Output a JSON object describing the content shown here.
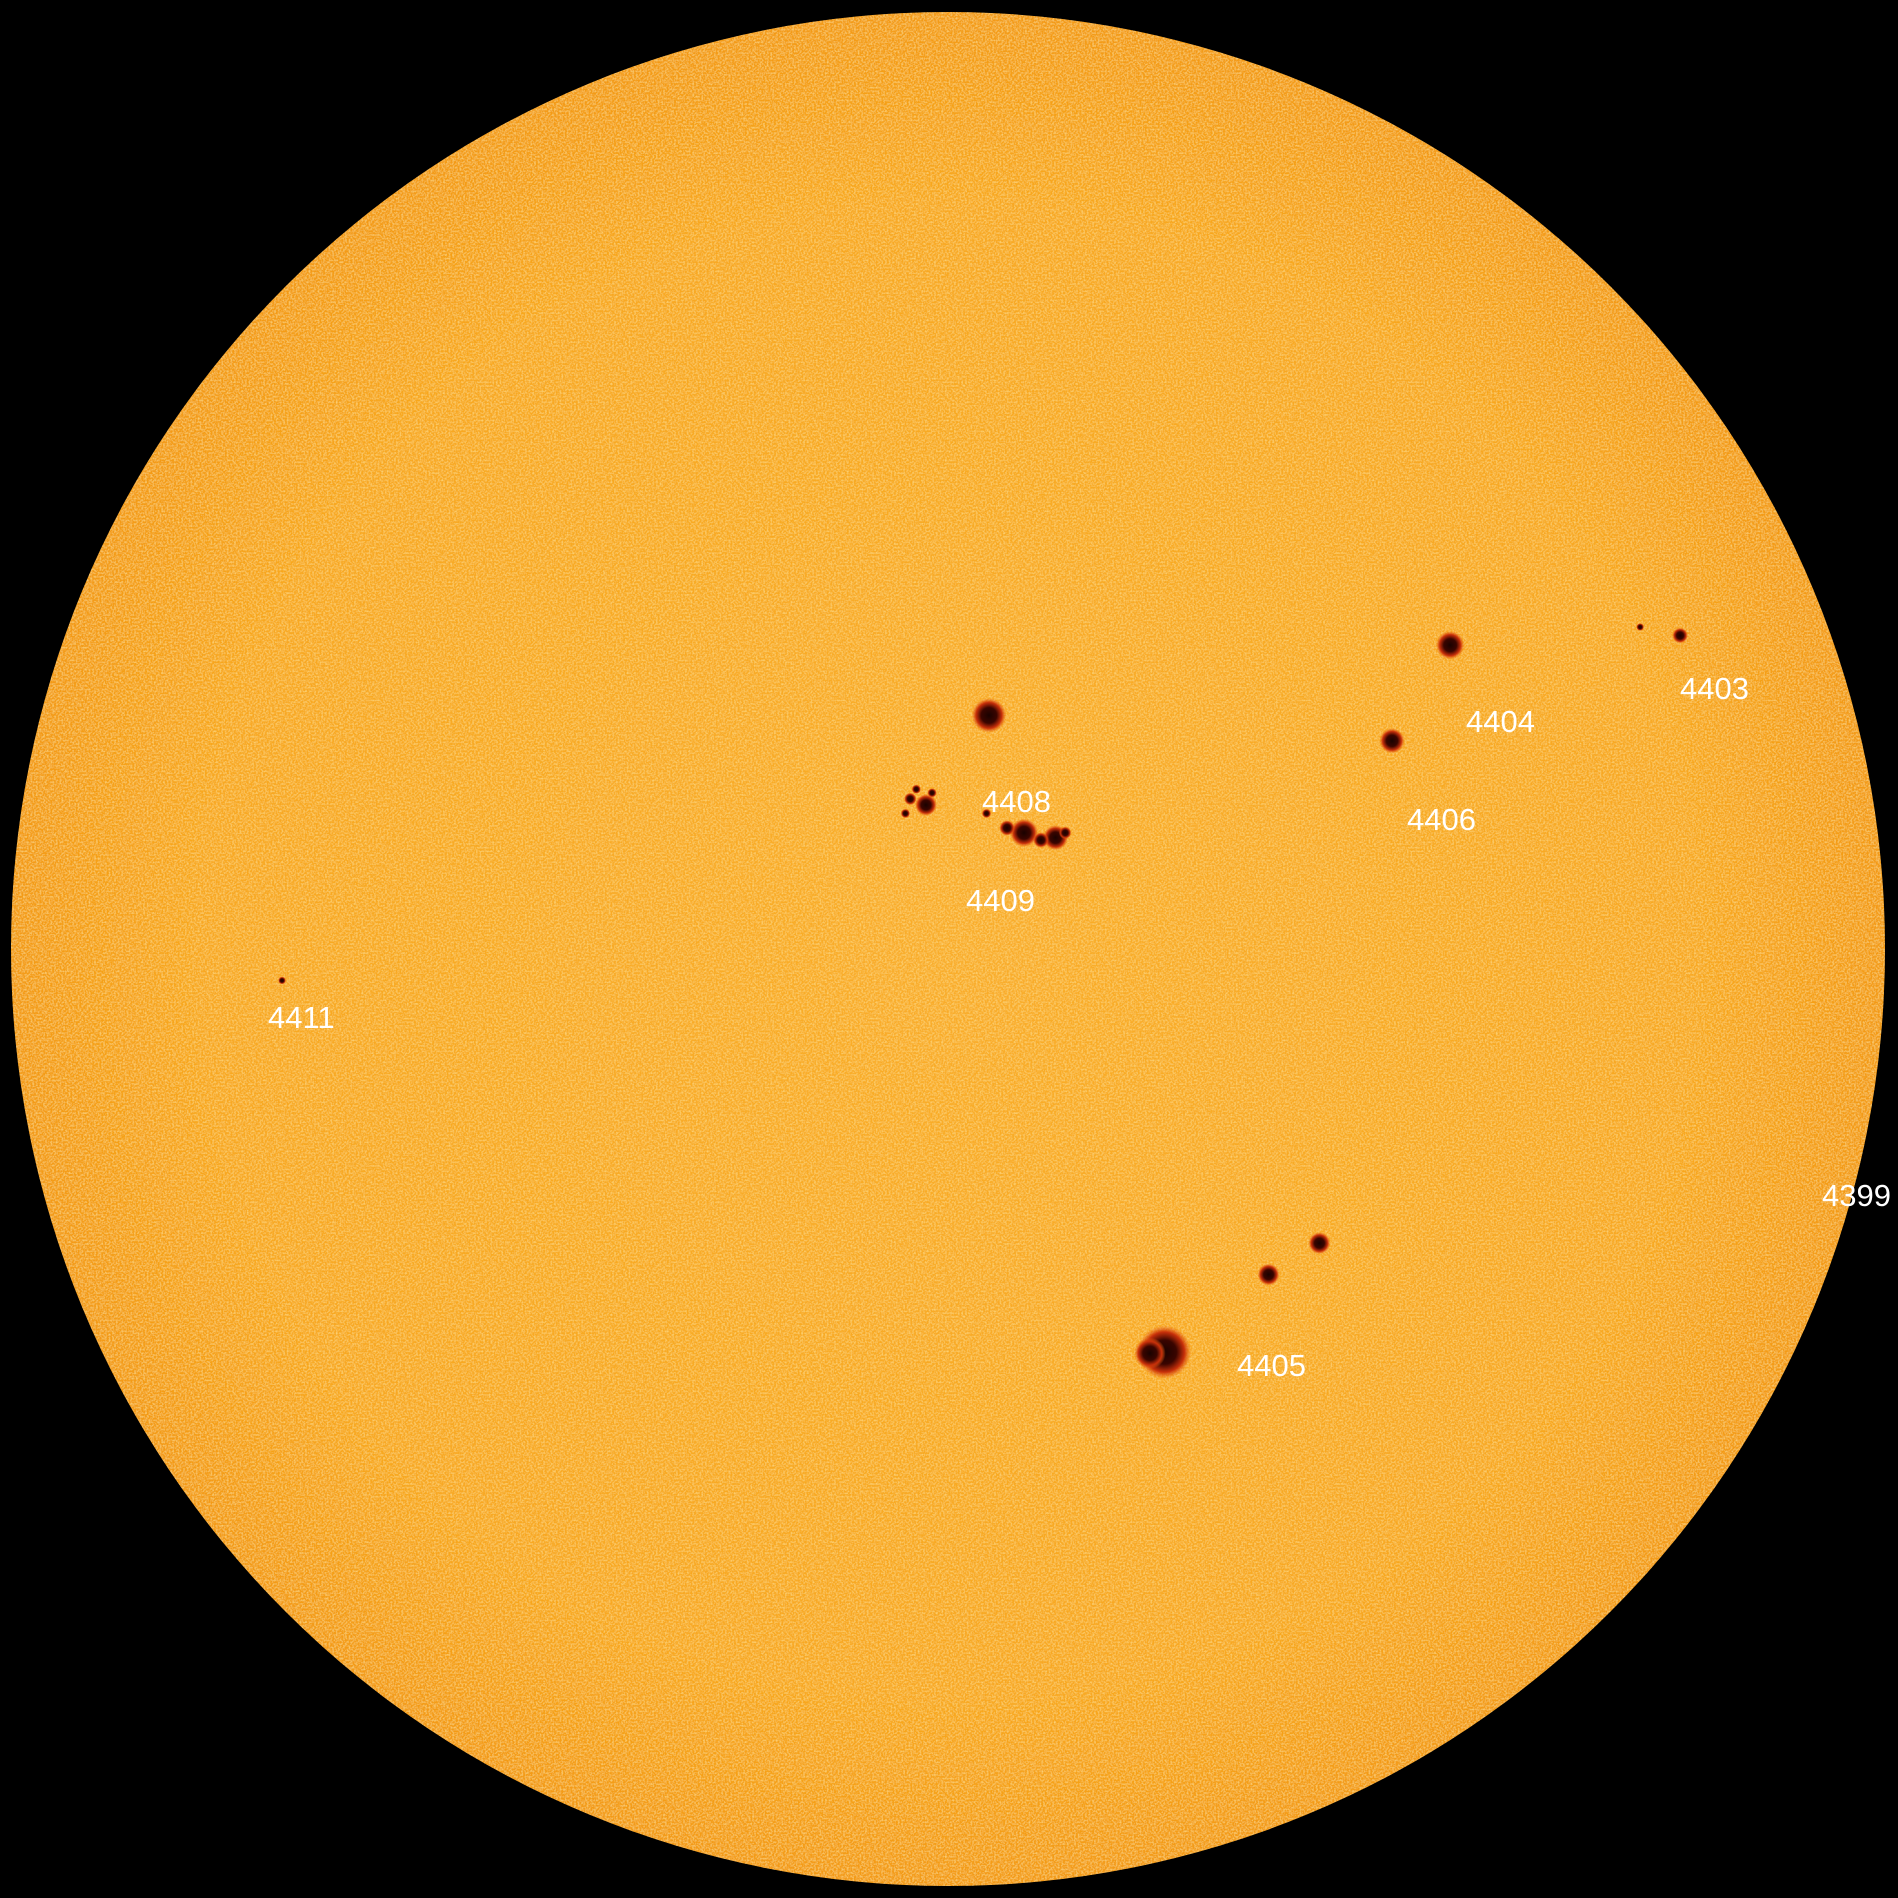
{
  "labels": [
    "4403",
    "4404",
    "4408",
    "4406",
    "4409",
    "4411",
    "4399",
    "4405"
  ]
}
